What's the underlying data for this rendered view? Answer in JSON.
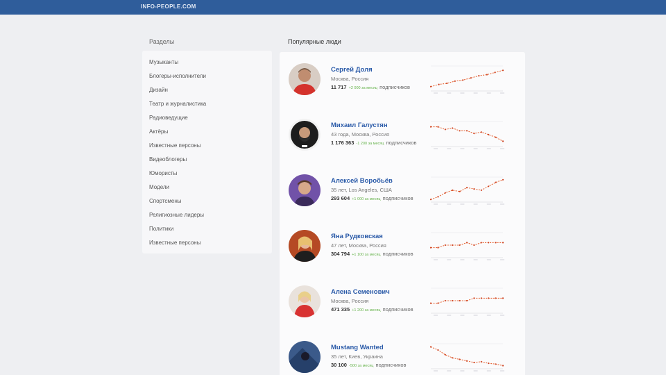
{
  "header": {
    "logo": "INFO-PEOPLE.COM",
    "color": "#2f5d9b"
  },
  "sidebar": {
    "title": "Разделы",
    "items": [
      {
        "label": "Музыканты"
      },
      {
        "label": "Блогеры-исполнители"
      },
      {
        "label": "Дизайн"
      },
      {
        "label": "Театр и журналистика"
      },
      {
        "label": "Радиоведущие"
      },
      {
        "label": "Актёры"
      },
      {
        "label": "Известные персоны"
      },
      {
        "label": "Видеоблогеры"
      },
      {
        "label": "Юмористы"
      },
      {
        "label": "Модели"
      },
      {
        "label": "Спортсмены"
      },
      {
        "label": "Религиозные лидеры"
      },
      {
        "label": "Политики"
      },
      {
        "label": "Известные персоны"
      }
    ]
  },
  "main": {
    "title": "Популярные люди",
    "people": [
      {
        "name": "Сергей Доля",
        "meta": "Москва, Россия",
        "count": "11 717",
        "delta": "+2 000 за месяц",
        "unit": "подписчиков",
        "trend": [
          42,
          44,
          45,
          47,
          48,
          50,
          52,
          53,
          55,
          57
        ],
        "line_color": "#e86a3a",
        "avatar_bg": "#c9a48e"
      },
      {
        "name": "Михаил Галустян",
        "meta": "43 года, Москва, Россия",
        "count": "1 176 363",
        "delta": "-1 200 за месяц",
        "unit": "подписчиков",
        "trend": [
          60,
          60,
          58,
          59,
          57,
          57,
          55,
          56,
          54,
          52,
          49
        ],
        "line_color": "#e86a3a",
        "avatar_bg": "#1d1d1d"
      },
      {
        "name": "Алексей Воробьёв",
        "meta": "35 лет, Los Angeles, США",
        "count": "293 604",
        "delta": "+1 000 за месяц",
        "unit": "подписчиков",
        "trend": [
          30,
          34,
          40,
          44,
          42,
          48,
          46,
          44,
          50,
          56,
          60
        ],
        "line_color": "#e86a3a",
        "avatar_bg": "#7152a8"
      },
      {
        "name": "Яна Рудковская",
        "meta": "47 лет, Москва, Россия",
        "count": "304 794",
        "delta": "+1 100 за месяц",
        "unit": "подписчиков",
        "trend": [
          50,
          50,
          51,
          51,
          51,
          52,
          51,
          52,
          52,
          52,
          52
        ],
        "line_color": "#e86a3a",
        "avatar_bg": "#b54a24"
      },
      {
        "name": "Алена Семенович",
        "meta": "Москва, Россия",
        "count": "471 335",
        "delta": "+1 200 за месяц",
        "unit": "подписчиков",
        "trend": [
          50,
          50,
          51,
          51,
          51,
          51,
          52,
          52,
          52,
          52,
          52
        ],
        "line_color": "#e86a3a",
        "avatar_bg": "#d83232"
      },
      {
        "name": "Mustang Wanted",
        "meta": "35 лет, Киев, Украина",
        "count": "30 100",
        "delta": "-500 за месяц",
        "unit": "подписчиков",
        "trend": [
          60,
          56,
          50,
          46,
          44,
          42,
          40,
          41,
          39,
          38,
          36
        ],
        "line_color": "#e86a3a",
        "avatar_bg": "#3b5a8a"
      }
    ]
  }
}
